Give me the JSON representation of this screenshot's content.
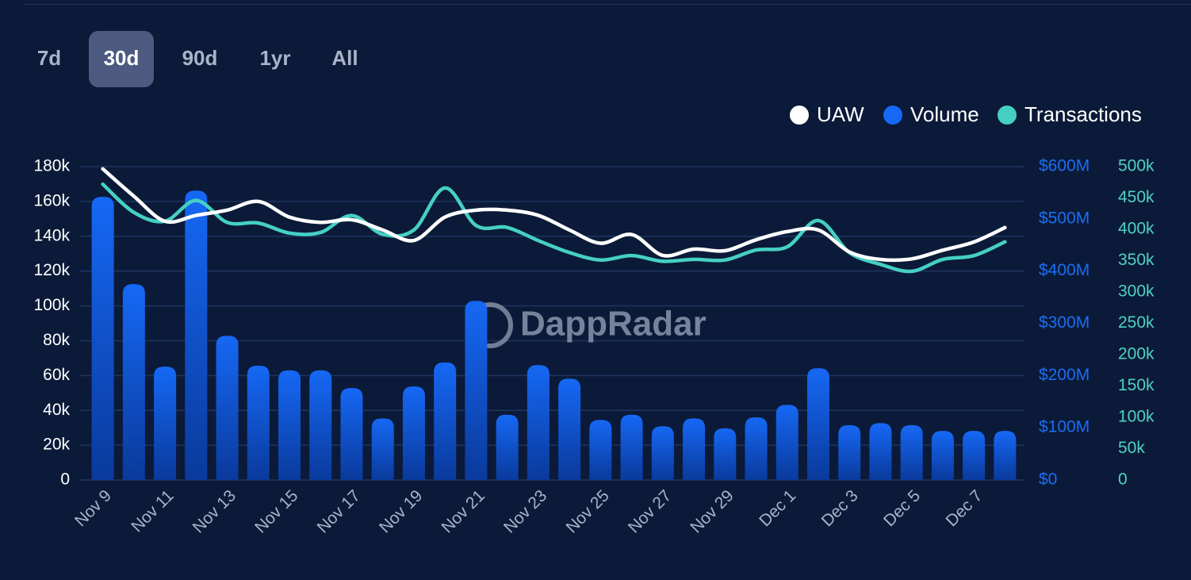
{
  "range_buttons": [
    "7d",
    "30d",
    "90d",
    "1yr",
    "All"
  ],
  "selected_range": "30d",
  "chart_data": {
    "type": "bar_line",
    "watermark": "DappRadar",
    "categories": [
      "Nov 9",
      null,
      "Nov 11",
      null,
      "Nov 13",
      null,
      "Nov 15",
      null,
      "Nov 17",
      null,
      "Nov 19",
      null,
      "Nov 21",
      null,
      "Nov 23",
      null,
      "Nov 25",
      null,
      "Nov 27",
      null,
      "Nov 29",
      null,
      "Dec 1",
      null,
      "Dec 3",
      null,
      "Dec 5",
      null,
      "Dec 7",
      null
    ],
    "series": [
      {
        "name": "UAW",
        "color": "#ffffff",
        "type": "line",
        "axis": "y",
        "values": [
          178700,
          163000,
          148600,
          152000,
          155000,
          160000,
          151000,
          148000,
          149500,
          143600,
          137600,
          151000,
          155000,
          155000,
          152000,
          143600,
          136000,
          141000,
          129000,
          132600,
          131700,
          138000,
          142700,
          143600,
          131000,
          126700,
          127000,
          132000,
          136700,
          145000
        ]
      },
      {
        "name": "Volume",
        "color": "#1668f5",
        "type": "bar",
        "axis": "y2",
        "values": [
          542000000,
          375000000,
          217000000,
          554000000,
          276000000,
          219000000,
          210000000,
          210000000,
          176000000,
          118000000,
          179000000,
          225000000,
          343000000,
          125000000,
          220000000,
          194000000,
          115000000,
          125000000,
          103000000,
          118000000,
          99000000,
          120000000,
          144000000,
          214000000,
          105000000,
          109000000,
          105000000,
          94000000,
          94000000,
          94000000
        ]
      },
      {
        "name": "Transactions",
        "color": "#45d0c3",
        "type": "line",
        "axis": "y3",
        "values": [
          472000,
          427000,
          413000,
          446000,
          411000,
          410000,
          394000,
          395000,
          422000,
          392000,
          399000,
          466000,
          406000,
          403000,
          382000,
          363000,
          351000,
          358000,
          349000,
          352000,
          351000,
          367000,
          372000,
          414000,
          363000,
          344000,
          333000,
          352000,
          358000,
          380000
        ]
      }
    ],
    "ylim": [
      0,
      180000
    ],
    "yticks": [
      0,
      {
        "value": 20000,
        "label": "20k"
      },
      {
        "value": 40000,
        "label": "40k"
      },
      {
        "value": 60000,
        "label": "60k"
      },
      {
        "value": 80000,
        "label": "80k"
      },
      {
        "value": 100000,
        "label": "100k"
      },
      {
        "value": 120000,
        "label": "120k"
      },
      {
        "value": 140000,
        "label": "140k"
      },
      {
        "value": 160000,
        "label": "160k"
      },
      {
        "value": 180000,
        "label": "180k"
      }
    ],
    "y2lim": [
      0,
      600000000
    ],
    "y2ticks": [
      {
        "value": 0,
        "label": "$0"
      },
      {
        "value": 100000000,
        "label": "$100M"
      },
      {
        "value": 200000000,
        "label": "$200M"
      },
      {
        "value": 300000000,
        "label": "$300M"
      },
      {
        "value": 400000000,
        "label": "$400M"
      },
      {
        "value": 500000000,
        "label": "$500M"
      },
      {
        "value": 600000000,
        "label": "$600M"
      }
    ],
    "y3lim": [
      0,
      500000
    ],
    "y3ticks": [
      0,
      {
        "value": 50000,
        "label": "50k"
      },
      {
        "value": 100000,
        "label": "100k"
      },
      {
        "value": 150000,
        "label": "150k"
      },
      {
        "value": 200000,
        "label": "200k"
      },
      {
        "value": 250000,
        "label": "250k"
      },
      {
        "value": 300000,
        "label": "300k"
      },
      {
        "value": 350000,
        "label": "350k"
      },
      {
        "value": 400000,
        "label": "400k"
      },
      {
        "value": 450000,
        "label": "450k"
      },
      {
        "value": 500000,
        "label": "500k"
      }
    ],
    "grid": true,
    "legend": "top-right"
  }
}
